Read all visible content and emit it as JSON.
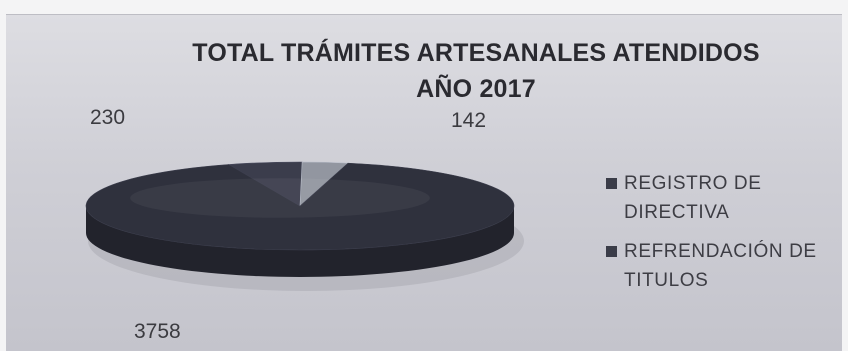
{
  "chart_data": {
    "type": "pie",
    "title": "TOTAL TRÁMITES ARTESANALES ATENDIDOS",
    "subtitle": "AÑO 2017",
    "legend_position": "right",
    "slices": [
      {
        "label": "",
        "value": 230,
        "color": "#3b3d4c"
      },
      {
        "label": "",
        "value": 142,
        "color": "#9296a0"
      },
      {
        "label": "",
        "value": 3758,
        "color": "#2f313d"
      }
    ],
    "legend": [
      {
        "label": "REGISTRO DE DIRECTIVA",
        "color": "#3a3c48"
      },
      {
        "label": "REFRENDACIÓN DE TITULOS",
        "color": "#3a3c48"
      }
    ]
  }
}
